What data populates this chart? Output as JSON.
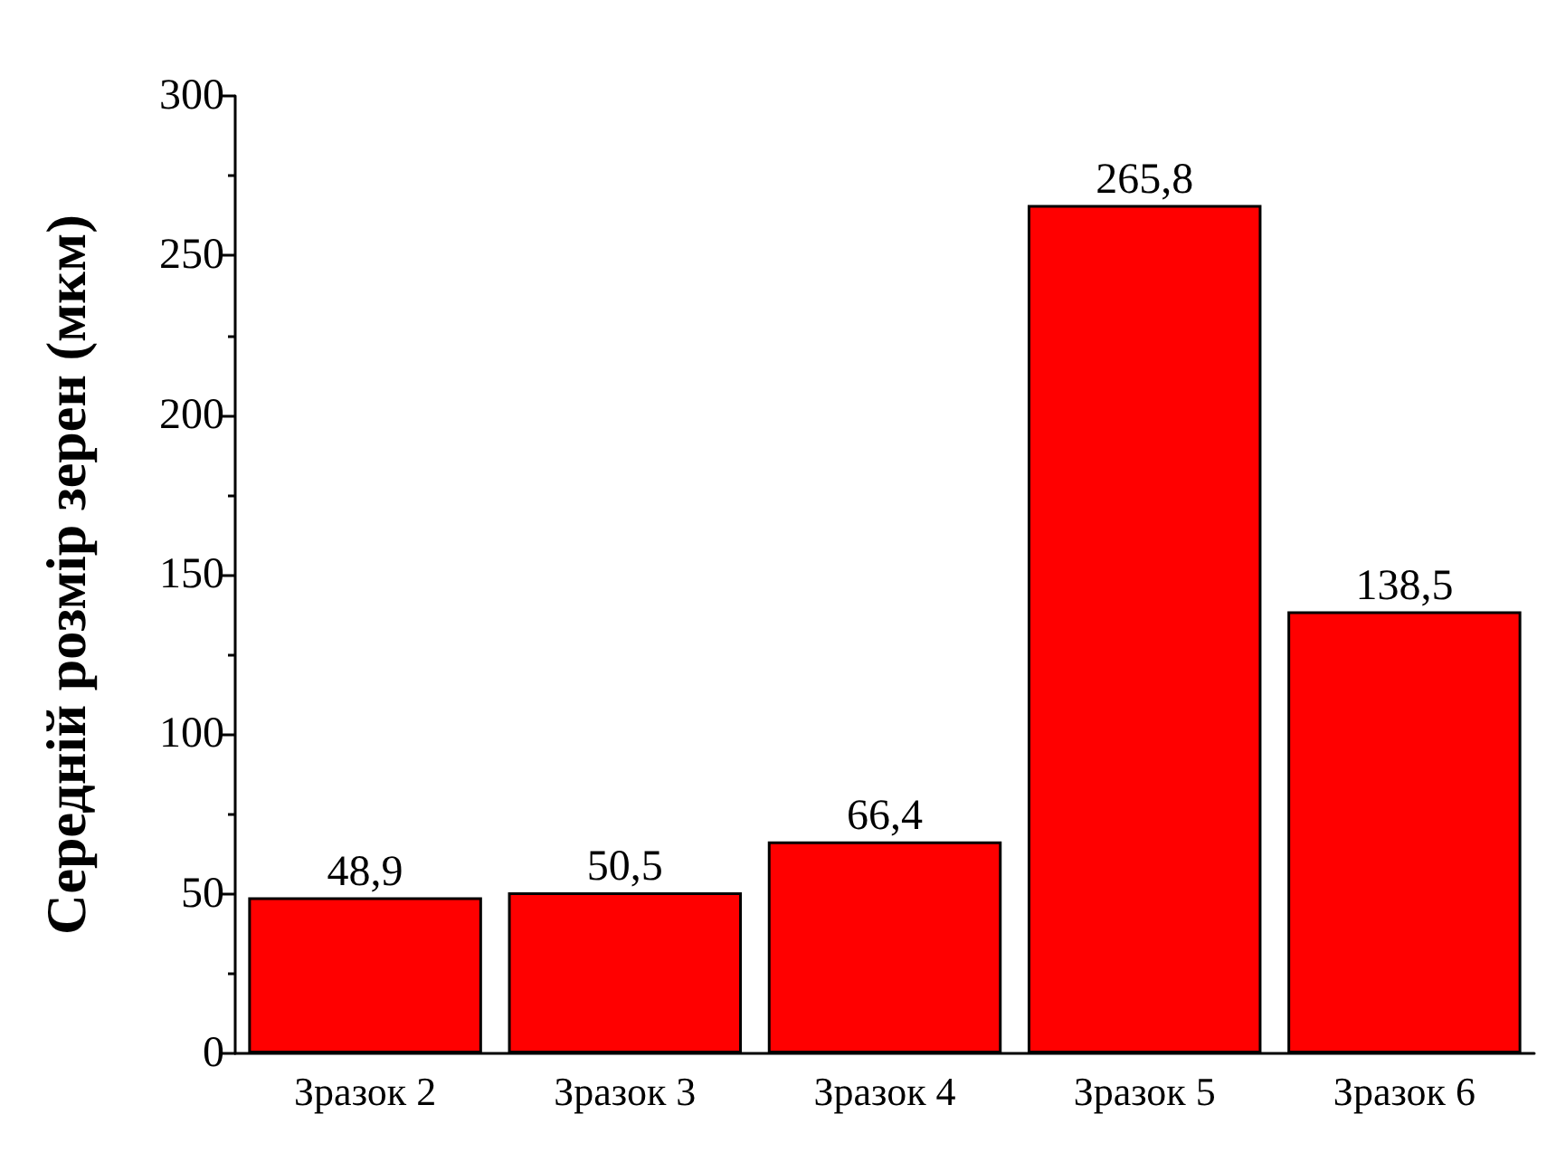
{
  "chart_data": {
    "type": "bar",
    "ylabel": "Середній розмір зерен (мкм)",
    "categories": [
      "Зразок 2",
      "Зразок 3",
      "Зразок 4",
      "Зразок 5",
      "Зразок 6"
    ],
    "values": [
      48.9,
      50.5,
      66.4,
      265.8,
      138.5
    ],
    "color": "#ff0000",
    "value_labels": [
      "48,9",
      "50,5",
      "66,4",
      "265,8",
      "138,5"
    ],
    "ylim": [
      0,
      300
    ],
    "yticks": [
      0,
      50,
      100,
      150,
      200,
      250,
      300
    ],
    "grid": false
  }
}
